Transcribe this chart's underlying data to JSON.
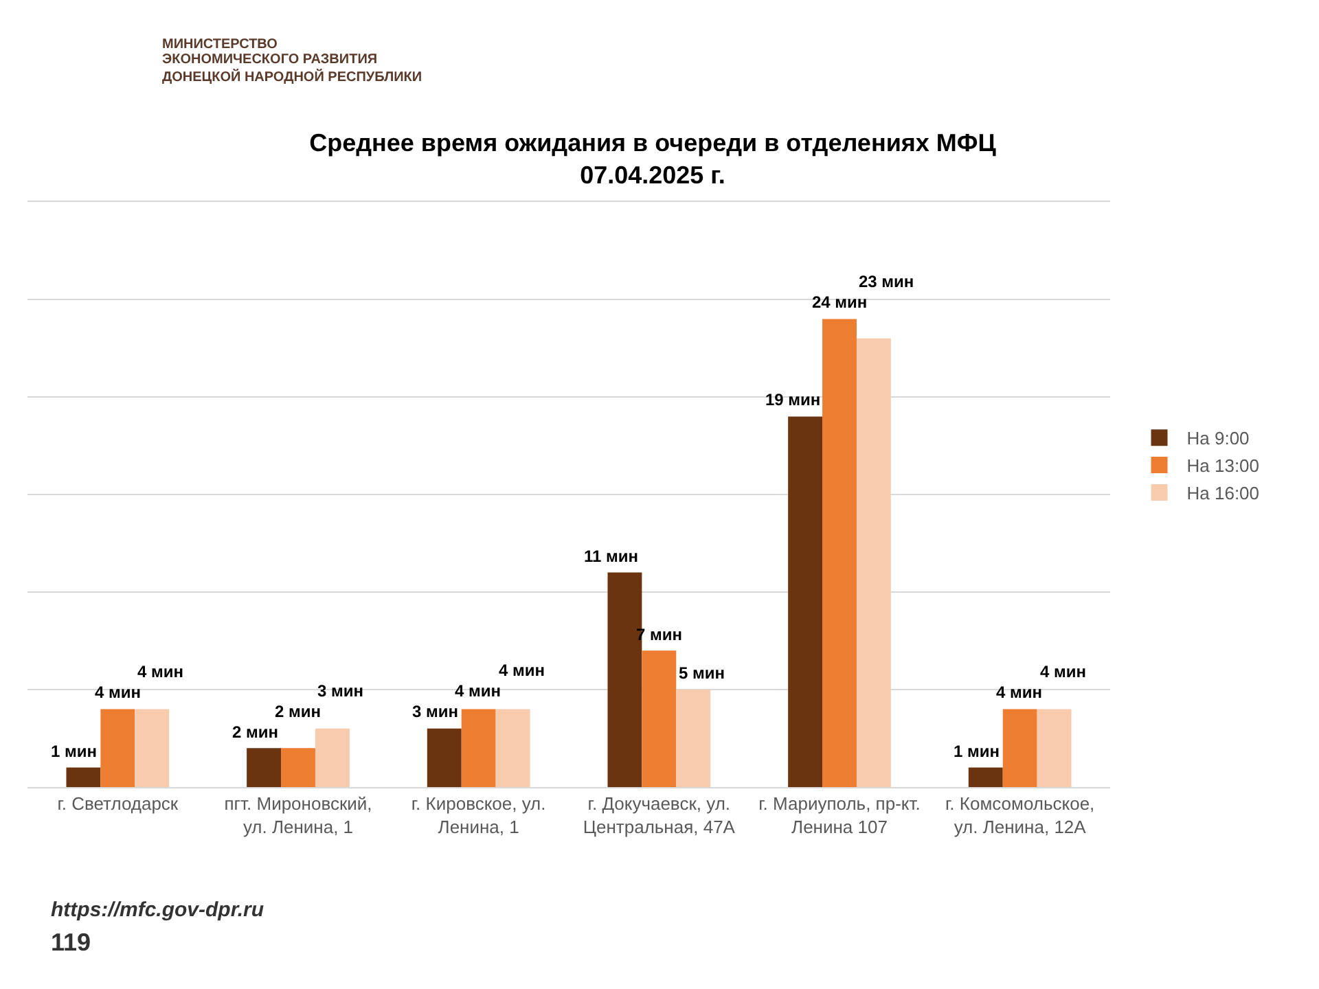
{
  "chart_data": {
    "type": "bar",
    "title": "Среднее время ожидания в очереди в отделениях МФЦ 07.04.2025 г.",
    "categories": [
      "г. Светлодарск",
      "пгт. Мироновский, ул. Ленина, 1",
      "г. Кировское, ул. Ленина, 1",
      "г. Докучаевск, ул. Центральная, 47А",
      "г. Мариуполь, пр-кт. Ленина 107",
      "г. Комсомольское, ул. Ленина, 12А"
    ],
    "series": [
      {
        "name": "На 9:00",
        "color": "#6b3410",
        "values": [
          1,
          2,
          3,
          11,
          19,
          1
        ],
        "value_labels": [
          "1 мин",
          "2 мин",
          "3 мин",
          "11 мин",
          "19 мин",
          "1 мин"
        ]
      },
      {
        "name": "На 13:00",
        "color": "#ed7d31",
        "values": [
          4,
          2,
          4,
          7,
          24,
          4
        ],
        "value_labels": [
          "4 мин",
          "2 мин",
          "4 мин",
          "7 мин",
          "24 мин",
          "4 мин"
        ]
      },
      {
        "name": "На 16:00",
        "color": "#f8cbad",
        "values": [
          4,
          3,
          4,
          5,
          23,
          4
        ],
        "value_labels": [
          "4 мин",
          "3 мин",
          "4 мин",
          "5 мин",
          "23 мин",
          "4 мин"
        ]
      }
    ],
    "ylim": [
      0,
      30
    ],
    "yticks": [
      {
        "value": 0,
        "label": null
      },
      {
        "value": 5,
        "label": null
      },
      {
        "value": 10,
        "label": null
      },
      {
        "value": 15,
        "label": null
      },
      {
        "value": 20,
        "label": null
      },
      {
        "value": 25,
        "label": null
      },
      {
        "value": 30,
        "label": null
      }
    ],
    "tick_labels": "x",
    "grid": "y",
    "legend": "right",
    "annotations": [
      "МИНИСТЕРСТВО",
      "ЭКОНОМИЧЕСКОГО РАЗВИТИЯ",
      "ДОНЕЦКОЙ НАРОДНОЙ РЕСПУБЛИКИ",
      "https://mfc.gov-dpr.ru",
      "119"
    ]
  }
}
